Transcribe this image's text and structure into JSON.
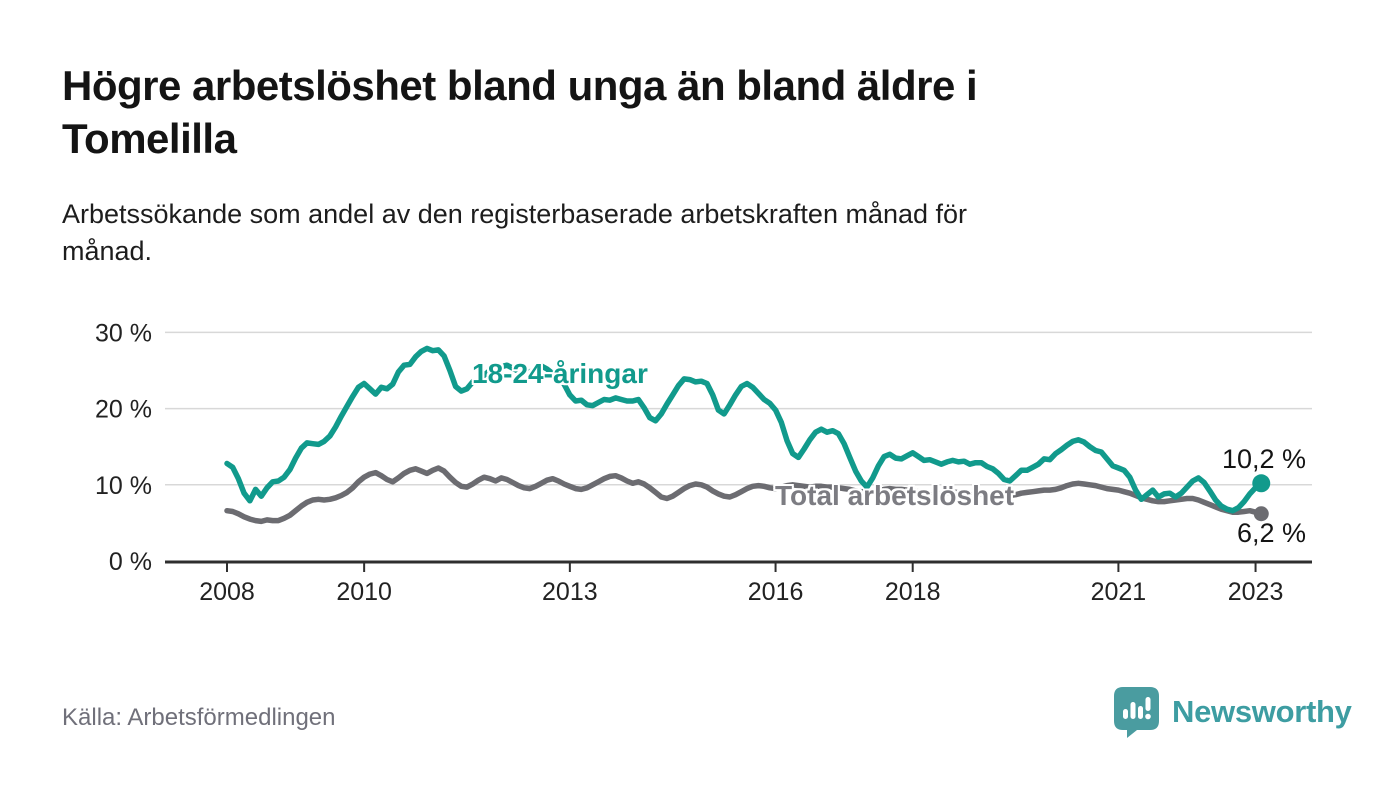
{
  "header": {
    "title": "Högre arbetslöshet bland unga än bland äldre i\nTomelilla",
    "subtitle": "Arbetssökande som andel av den registerbaserade arbetskraften månad för\nmånad."
  },
  "footer": {
    "source": "Källa: Arbetsförmedlingen",
    "brand": {
      "name": "Newsworthy",
      "icon": "bar-chart-speech-bubble-icon"
    }
  },
  "colors": {
    "youth_line": "#119a8c",
    "total_line": "#6c6c71",
    "youth_label": "#119a8c",
    "total_label": "#7c7c82",
    "gridline": "#d8d8d8",
    "axis": "#2f2f2f",
    "tick_text": "#222222",
    "logo_icon": "#4a9ca0",
    "logo_text": "#3d9da2"
  },
  "annotations": {
    "youth_series_label": "18-24-åringar",
    "total_series_label": "Total arbetslöshet",
    "youth_end_label": "10,2 %",
    "total_end_label": "6,2 %"
  },
  "chart_data": {
    "type": "line",
    "title": "Högre arbetslöshet bland unga än bland äldre i Tomelilla",
    "subtitle": "Arbetssökande som andel av den registerbaserade arbetskraften månad för månad.",
    "source": "Arbetsförmedlingen",
    "frequency": "monthly",
    "start": {
      "year": 2008,
      "month": 1
    },
    "end": {
      "year": 2023,
      "month": 2
    },
    "unit": "%",
    "grid": true,
    "x_axis": {
      "tick_years": [
        2008,
        2010,
        2013,
        2016,
        2018,
        2021,
        2023
      ],
      "tick_labels": [
        "2008",
        "2010",
        "2013",
        "2016",
        "2018",
        "2021",
        "2023"
      ]
    },
    "y_axis": {
      "tick_values": [
        0,
        10,
        20,
        30
      ],
      "tick_labels": [
        "0 %",
        "10 %",
        "20 %",
        "30 %"
      ],
      "ylim": [
        0,
        32
      ]
    },
    "series": [
      {
        "name": "18-24-åringar",
        "color": "#119a8c",
        "end_value": 10.2,
        "end_label": "10,2 %",
        "values": [
          12.8,
          12.3,
          10.8,
          8.9,
          7.9,
          9.4,
          8.5,
          9.6,
          10.4,
          10.5,
          11.0,
          12.0,
          13.5,
          14.8,
          15.5,
          15.4,
          15.3,
          15.7,
          16.4,
          17.6,
          19.0,
          20.3,
          21.6,
          22.8,
          23.3,
          22.6,
          21.9,
          22.8,
          22.6,
          23.2,
          24.8,
          25.7,
          25.8,
          26.8,
          27.5,
          27.9,
          27.6,
          27.7,
          26.9,
          25.0,
          22.9,
          22.3,
          22.6,
          23.5,
          23.6,
          24.4,
          25.0,
          25.3,
          25.5,
          25.7,
          25.3,
          24.9,
          24.7,
          24.8,
          25.3,
          25.6,
          25.2,
          24.6,
          24.0,
          23.2,
          21.8,
          21.0,
          21.1,
          20.5,
          20.4,
          20.8,
          21.2,
          21.1,
          21.4,
          21.2,
          21.0,
          21.0,
          21.2,
          20.1,
          18.8,
          18.4,
          19.3,
          20.6,
          21.8,
          23.0,
          23.9,
          23.8,
          23.5,
          23.6,
          23.3,
          21.8,
          19.8,
          19.3,
          20.5,
          21.8,
          22.9,
          23.3,
          22.8,
          22.0,
          21.2,
          20.7,
          19.8,
          18.2,
          15.8,
          14.1,
          13.6,
          14.7,
          15.9,
          16.9,
          17.3,
          16.9,
          17.1,
          16.7,
          15.4,
          13.6,
          11.8,
          10.5,
          9.7,
          10.9,
          12.5,
          13.7,
          14.0,
          13.5,
          13.4,
          13.8,
          14.2,
          13.7,
          13.2,
          13.3,
          13.0,
          12.7,
          13.0,
          13.2,
          13.0,
          13.1,
          12.7,
          12.9,
          12.9,
          12.4,
          12.1,
          11.5,
          10.7,
          10.5,
          11.2,
          11.9,
          11.9,
          12.3,
          12.7,
          13.4,
          13.3,
          14.1,
          14.6,
          15.2,
          15.7,
          15.9,
          15.6,
          15.0,
          14.5,
          14.3,
          13.4,
          12.5,
          12.2,
          11.9,
          11.0,
          9.3,
          8.1,
          8.7,
          9.3,
          8.4,
          8.8,
          8.9,
          8.4,
          8.9,
          9.7,
          10.5,
          10.9,
          10.3,
          9.2,
          8.0,
          7.2,
          6.8,
          6.6,
          7.0,
          7.8,
          8.8,
          9.6,
          10.2
        ]
      },
      {
        "name": "Total arbetslöshet",
        "color": "#6c6c71",
        "end_value": 6.2,
        "end_label": "6,2 %",
        "values": [
          6.6,
          6.5,
          6.2,
          5.8,
          5.5,
          5.3,
          5.2,
          5.4,
          5.3,
          5.3,
          5.6,
          6.0,
          6.6,
          7.2,
          7.7,
          8.0,
          8.1,
          8.0,
          8.1,
          8.3,
          8.6,
          9.0,
          9.6,
          10.4,
          11.0,
          11.4,
          11.6,
          11.2,
          10.7,
          10.4,
          10.9,
          11.5,
          11.9,
          12.1,
          11.8,
          11.5,
          11.9,
          12.2,
          11.8,
          11.0,
          10.3,
          9.8,
          9.7,
          10.1,
          10.6,
          11.0,
          10.8,
          10.5,
          10.9,
          10.7,
          10.3,
          9.9,
          9.6,
          9.5,
          9.8,
          10.2,
          10.6,
          10.8,
          10.5,
          10.1,
          9.8,
          9.5,
          9.4,
          9.6,
          10.0,
          10.4,
          10.8,
          11.1,
          11.2,
          10.9,
          10.5,
          10.2,
          10.4,
          10.1,
          9.6,
          9.0,
          8.4,
          8.2,
          8.5,
          9.0,
          9.5,
          9.9,
          10.1,
          10.0,
          9.7,
          9.2,
          8.8,
          8.5,
          8.4,
          8.7,
          9.1,
          9.5,
          9.8,
          9.9,
          9.8,
          9.6,
          9.5,
          9.7,
          9.9,
          10.0,
          9.9,
          9.8,
          9.7,
          9.8,
          9.8,
          9.7,
          9.7,
          9.6,
          9.5,
          9.4,
          9.2,
          9.1,
          9.0,
          9.1,
          9.2,
          9.4,
          9.5,
          9.4,
          9.4,
          9.3,
          9.2,
          9.1,
          9.0,
          8.9,
          8.8,
          8.8,
          8.9,
          9.0,
          9.0,
          8.9,
          8.8,
          8.8,
          8.8,
          8.7,
          8.6,
          8.5,
          8.5,
          8.6,
          8.7,
          8.9,
          9.0,
          9.1,
          9.2,
          9.3,
          9.3,
          9.4,
          9.6,
          9.9,
          10.1,
          10.2,
          10.1,
          10.0,
          9.9,
          9.7,
          9.5,
          9.4,
          9.3,
          9.1,
          8.9,
          8.6,
          8.3,
          8.1,
          7.9,
          7.8,
          7.8,
          7.9,
          8.0,
          8.1,
          8.2,
          8.2,
          8.0,
          7.7,
          7.4,
          7.1,
          6.8,
          6.6,
          6.4,
          6.4,
          6.5,
          6.6,
          6.4,
          6.2
        ]
      }
    ]
  }
}
